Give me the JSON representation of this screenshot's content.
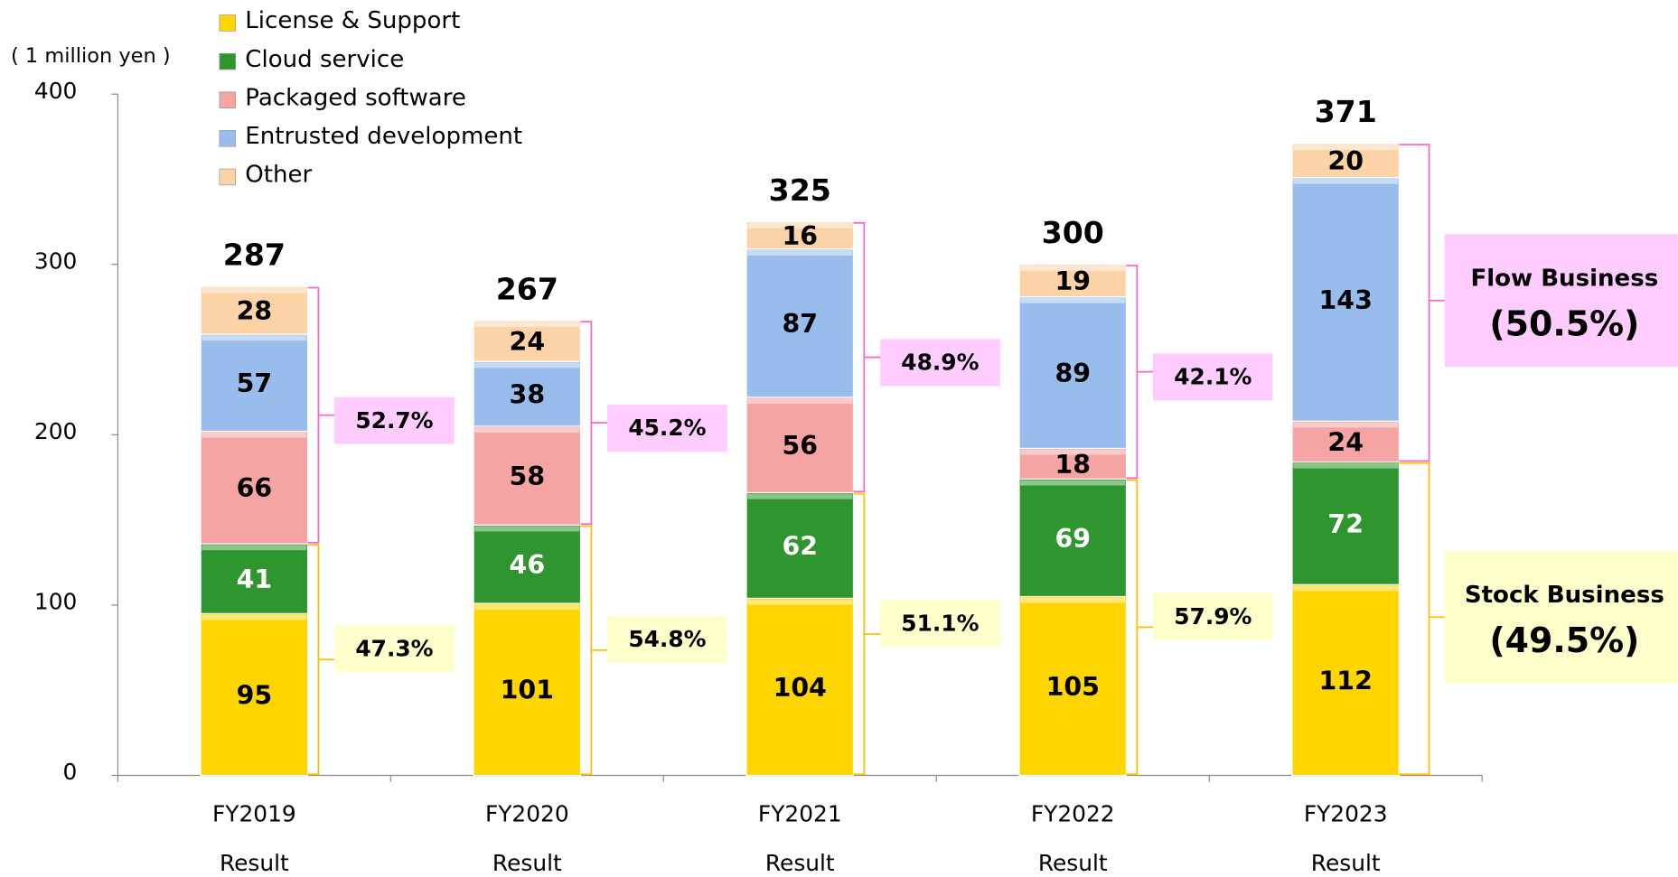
{
  "chart_data": {
    "type": "stacked_bar",
    "y_unit_label": "( 1 million yen )",
    "categories": [
      [
        "FY2019",
        "Result"
      ],
      [
        "FY2020",
        "Result"
      ],
      [
        "FY2021",
        "Result"
      ],
      [
        "FY2022",
        "Result"
      ],
      [
        "FY2023",
        "Result"
      ]
    ],
    "ylim": [
      0,
      400
    ],
    "yticks": [
      0,
      100,
      200,
      300,
      400
    ],
    "series": [
      {
        "name": "License & Support",
        "color": "#ffd500",
        "label_color": "#000000",
        "values": [
          95,
          101,
          104,
          105,
          112
        ]
      },
      {
        "name": "Cloud service",
        "color": "#2f962f",
        "label_color": "#ffffff",
        "values": [
          41,
          46,
          62,
          69,
          72
        ]
      },
      {
        "name": "Packaged software",
        "color": "#f5a3a3",
        "label_color": "#000000",
        "values": [
          66,
          58,
          56,
          18,
          24
        ]
      },
      {
        "name": "Entrusted development",
        "color": "#98bdec",
        "label_color": "#000000",
        "values": [
          57,
          38,
          87,
          89,
          143
        ]
      },
      {
        "name": "Other",
        "color": "#fcd3a6",
        "label_color": "#000000",
        "values": [
          28,
          24,
          16,
          19,
          20
        ]
      }
    ],
    "totals": [
      287,
      267,
      325,
      300,
      371
    ],
    "groups": [
      {
        "name": "Stock Business",
        "series": [
          0,
          1
        ],
        "color": "#ffc000",
        "box_color": "#ffffcc",
        "values": [
          47.3,
          54.8,
          51.1,
          57.9,
          49.5
        ],
        "value_labels": [
          "47.3%",
          "54.8%",
          "51.1%",
          "57.9%",
          "(49.5%)"
        ]
      },
      {
        "name": "Flow Business",
        "series": [
          2,
          3,
          4
        ],
        "color": "#ff66cc",
        "box_color": "#ffccff",
        "values": [
          52.7,
          45.2,
          48.9,
          42.1,
          50.5
        ],
        "value_labels": [
          "52.7%",
          "45.2%",
          "48.9%",
          "42.1%",
          "(50.5%)"
        ]
      }
    ]
  }
}
